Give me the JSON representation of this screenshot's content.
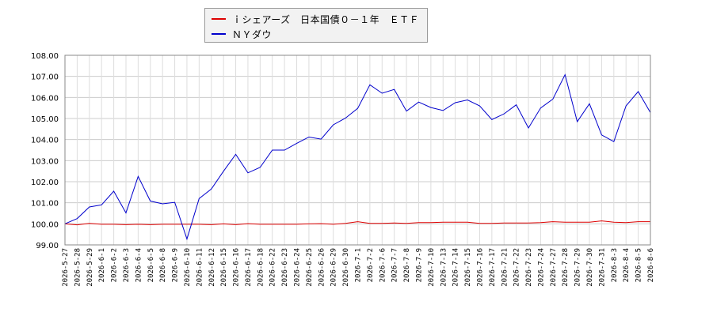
{
  "chart_data": {
    "type": "line",
    "x": [
      "2026-5-27",
      "2026-5-28",
      "2026-5-29",
      "2026-6-1",
      "2026-6-2",
      "2026-6-3",
      "2026-6-4",
      "2026-6-5",
      "2026-6-8",
      "2026-6-9",
      "2026-6-10",
      "2026-6-11",
      "2026-6-12",
      "2026-6-15",
      "2026-6-16",
      "2026-6-17",
      "2026-6-18",
      "2026-6-22",
      "2026-6-23",
      "2026-6-24",
      "2026-6-25",
      "2026-6-26",
      "2026-6-29",
      "2026-6-30",
      "2026-7-1",
      "2026-7-2",
      "2026-7-6",
      "2026-7-7",
      "2026-7-8",
      "2026-7-9",
      "2026-7-10",
      "2026-7-13",
      "2026-7-14",
      "2026-7-15",
      "2026-7-16",
      "2026-7-17",
      "2026-7-21",
      "2026-7-22",
      "2026-7-23",
      "2026-7-24",
      "2026-7-27",
      "2026-7-28",
      "2026-7-29",
      "2026-7-30",
      "2026-7-31",
      "2026-8-3",
      "2026-8-4",
      "2026-8-5",
      "2026-8-6"
    ],
    "ylim": [
      99.0,
      108.0
    ],
    "yticks": [
      "108.00",
      "107.00",
      "106.00",
      "105.00",
      "104.00",
      "103.00",
      "102.00",
      "101.00",
      "100.00",
      "99.00"
    ],
    "grid": true,
    "legend_position": "top-center",
    "series": [
      {
        "name": "ｉシェアーズ　日本国債０－１年　ＥＴＦ",
        "color": "#dd0000",
        "values": [
          100.0,
          99.95,
          100.02,
          99.98,
          99.98,
          99.96,
          99.98,
          99.96,
          99.98,
          99.98,
          99.98,
          99.98,
          99.96,
          100.0,
          99.96,
          100.01,
          99.98,
          99.98,
          99.98,
          99.98,
          100.0,
          100.01,
          99.98,
          100.02,
          100.1,
          100.02,
          100.02,
          100.04,
          100.02,
          100.06,
          100.06,
          100.08,
          100.08,
          100.08,
          100.02,
          100.02,
          100.04,
          100.04,
          100.04,
          100.06,
          100.1,
          100.08,
          100.08,
          100.08,
          100.14,
          100.08,
          100.06,
          100.1,
          100.1
        ]
      },
      {
        "name": "ＮＹダウ",
        "color": "#0000cc",
        "values": [
          100.0,
          100.25,
          100.8,
          100.9,
          101.55,
          100.52,
          102.25,
          101.08,
          100.95,
          101.02,
          99.28,
          101.2,
          101.65,
          102.5,
          103.3,
          102.42,
          102.68,
          103.5,
          103.5,
          103.82,
          104.12,
          104.02,
          104.7,
          105.02,
          105.48,
          106.6,
          106.2,
          106.38,
          105.35,
          105.78,
          105.52,
          105.38,
          105.75,
          105.88,
          105.6,
          104.95,
          105.22,
          105.65,
          104.55,
          105.5,
          105.92,
          107.08,
          104.85,
          105.7,
          104.22,
          103.9,
          105.6,
          106.28,
          105.28
        ]
      }
    ]
  }
}
